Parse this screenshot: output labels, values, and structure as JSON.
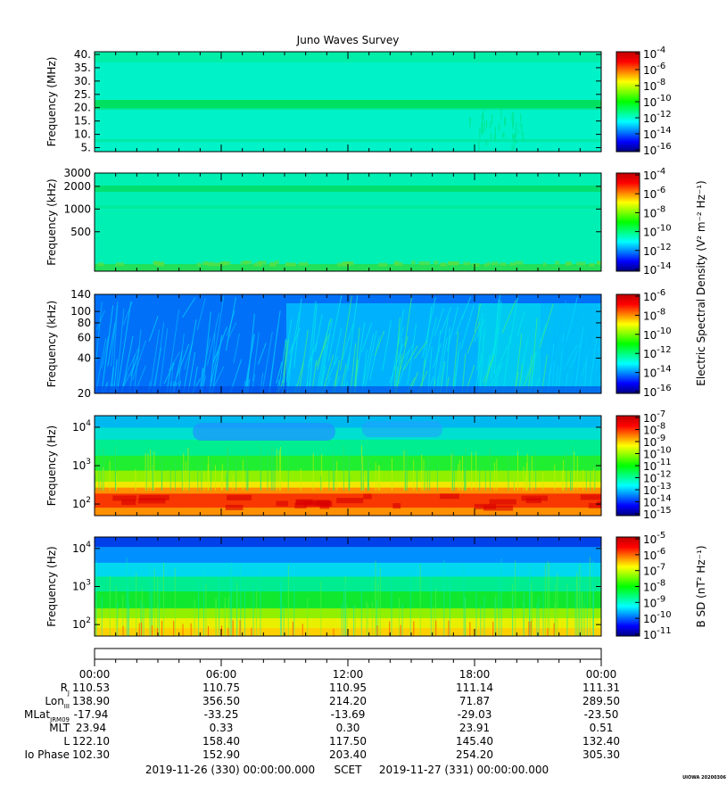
{
  "chart_data": {
    "type": "heatmap",
    "title": "Juno Waves Survey",
    "colors": {
      "colormap": [
        "#00007f",
        "#0000ff",
        "#0080ff",
        "#00ffff",
        "#00ff80",
        "#00ff00",
        "#80ff00",
        "#ffff00",
        "#ff8000",
        "#ff0000",
        "#bf0000"
      ]
    },
    "panels": [
      {
        "ylabel": "Frequency (MHz)",
        "yscale": "linear",
        "ylim": [
          3.5,
          41
        ],
        "yticks": [
          {
            "v": 40,
            "label": "40."
          },
          {
            "v": 35,
            "label": "35."
          },
          {
            "v": 30,
            "label": "30."
          },
          {
            "v": 25,
            "label": "25."
          },
          {
            "v": 20,
            "label": "20."
          },
          {
            "v": 15,
            "label": "15."
          },
          {
            "v": 10,
            "label": "10."
          },
          {
            "v": 5,
            "label": "5."
          }
        ],
        "cbar_ticks": [
          "-4",
          "-6",
          "-8",
          "-10",
          "-12",
          "-14",
          "-16"
        ],
        "cbar_label": "",
        "style": "hf"
      },
      {
        "ylabel": "Frequency (kHz)",
        "yscale": "log",
        "ylim": [
          150,
          3000
        ],
        "yticks": [
          {
            "v": 3000,
            "label": "3000"
          },
          {
            "v": 2000,
            "label": "2000"
          },
          {
            "v": 1000,
            "label": "1000"
          },
          {
            "v": 500,
            "label": "500"
          }
        ],
        "cbar_ticks": [
          "-4",
          "-6",
          "-8",
          "-10",
          "-12",
          "-14"
        ],
        "cbar_label": "",
        "style": "mf"
      },
      {
        "ylabel": "Frequency (kHz)",
        "yscale": "log",
        "ylim": [
          20,
          140
        ],
        "yticks": [
          {
            "v": 140,
            "label": "140"
          },
          {
            "v": 100,
            "label": "100"
          },
          {
            "v": 80,
            "label": "80"
          },
          {
            "v": 60,
            "label": "60"
          },
          {
            "v": 40,
            "label": "40"
          },
          {
            "v": 20,
            "label": "20"
          }
        ],
        "cbar_ticks": [
          "-6",
          "-8",
          "-10",
          "-12",
          "-14",
          "-16"
        ],
        "cbar_label": "Electric Spectral Density (V² m⁻² Hz⁻¹)",
        "style": "lf"
      },
      {
        "ylabel": "Frequency (Hz)",
        "yscale": "log",
        "ylim": [
          50,
          20000
        ],
        "yticks": [
          {
            "v": 10000,
            "base": "10",
            "exp": "4"
          },
          {
            "v": 1000,
            "base": "10",
            "exp": "3"
          },
          {
            "v": 100,
            "base": "10",
            "exp": "2"
          }
        ],
        "cbar_ticks": [
          "-7",
          "-8",
          "-9",
          "-10",
          "-11",
          "-12",
          "-13",
          "-14",
          "-15"
        ],
        "cbar_label": "",
        "style": "elf"
      },
      {
        "ylabel": "Frequency (Hz)",
        "yscale": "log",
        "ylim": [
          50,
          20000
        ],
        "yticks": [
          {
            "v": 10000,
            "base": "10",
            "exp": "4"
          },
          {
            "v": 1000,
            "base": "10",
            "exp": "3"
          },
          {
            "v": 100,
            "base": "10",
            "exp": "2"
          }
        ],
        "cbar_ticks": [
          "-5",
          "-6",
          "-7",
          "-8",
          "-9",
          "-10",
          "-11"
        ],
        "cbar_label": "B SD (nT² Hz⁻¹)",
        "style": "mag"
      }
    ],
    "x": {
      "range_hours": [
        0,
        24
      ],
      "tick_hours": [
        0,
        6,
        12,
        18,
        24
      ],
      "tick_labels": [
        "00:00",
        "06:00",
        "12:00",
        "18:00",
        "00:00"
      ]
    },
    "ephemeris": [
      {
        "label": "R",
        "sub": "J",
        "values": [
          "110.53",
          "110.75",
          "110.95",
          "111.14",
          "111.31"
        ]
      },
      {
        "label": "Lon",
        "sub": "III",
        "values": [
          "138.90",
          "356.50",
          "214.20",
          "71.87",
          "289.50"
        ]
      },
      {
        "label": "MLat",
        "sub": "JRM09",
        "values": [
          "-17.94",
          "-33.25",
          "-13.69",
          "-29.03",
          "-23.50"
        ]
      },
      {
        "label": "MLT",
        "sub": "",
        "values": [
          "23.94",
          "0.33",
          "0.30",
          "23.91",
          "0.51"
        ]
      },
      {
        "label": "L",
        "sub": "",
        "values": [
          "122.10",
          "158.40",
          "117.50",
          "145.40",
          "132.40"
        ]
      },
      {
        "label": "Io Phase",
        "sub": "",
        "values": [
          "102.30",
          "152.90",
          "203.40",
          "254.20",
          "305.30"
        ]
      }
    ],
    "footer": {
      "start": "2019-11-26 (330) 00:00:00.000",
      "mid": "SCET",
      "end": "2019-11-27 (331) 00:00:00.000"
    },
    "stamp": "UIOWA 20200306"
  }
}
